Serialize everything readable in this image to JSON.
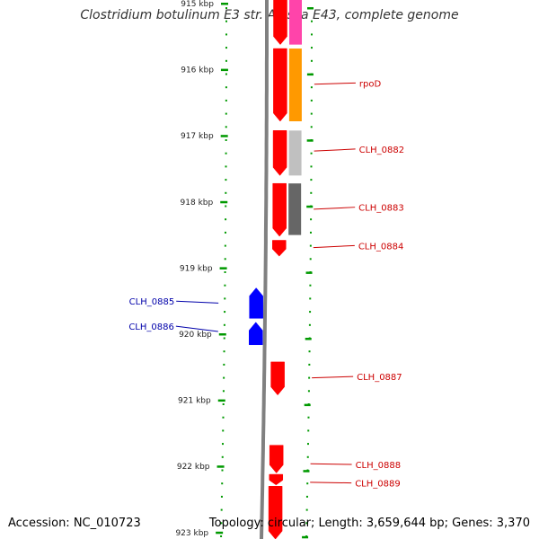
{
  "title": "Clostridium botulinum E3 str. Alaska E43, complete genome",
  "footer": {
    "accession": "Accession: NC_010723",
    "summary": "Topology: circular; Length: 3,659,644 bp; Genes: 3,370"
  },
  "colors": {
    "background": "#ffffff",
    "forward_gene": "#ff0000",
    "reverse_gene": "#0000ff",
    "forward_label": "#cc0000",
    "reverse_label": "#0000aa",
    "tick": "#009900",
    "backbone": "#808080"
  },
  "ticks": [
    {
      "label": "915 kbp",
      "kbp": 915
    },
    {
      "label": "916 kbp",
      "kbp": 916
    },
    {
      "label": "917 kbp",
      "kbp": 917
    },
    {
      "label": "918 kbp",
      "kbp": 918
    },
    {
      "label": "919 kbp",
      "kbp": 919
    },
    {
      "label": "920 kbp",
      "kbp": 920
    },
    {
      "label": "921 kbp",
      "kbp": 921
    },
    {
      "label": "922 kbp",
      "kbp": 922
    },
    {
      "label": "923 kbp",
      "kbp": 923
    }
  ],
  "features": [
    {
      "strand": "+",
      "start_kbp": 914.9,
      "end_kbp": 915.62,
      "color": "#ff0000"
    },
    {
      "strand": "+",
      "start_kbp": 915.68,
      "end_kbp": 916.78,
      "color": "#ff0000"
    },
    {
      "strand": "+",
      "start_kbp": 916.92,
      "end_kbp": 917.6,
      "color": "#ff0000"
    },
    {
      "strand": "+",
      "start_kbp": 917.72,
      "end_kbp": 918.52,
      "color": "#ff0000"
    },
    {
      "strand": "+",
      "start_kbp": 918.58,
      "end_kbp": 918.82,
      "color": "#ff0000"
    },
    {
      "strand": "-",
      "start_kbp": 919.3,
      "end_kbp": 919.76,
      "color": "#0000ff"
    },
    {
      "strand": "-",
      "start_kbp": 919.82,
      "end_kbp": 920.16,
      "color": "#0000ff"
    },
    {
      "strand": "+",
      "start_kbp": 920.42,
      "end_kbp": 920.92,
      "color": "#ff0000"
    },
    {
      "strand": "+",
      "start_kbp": 921.68,
      "end_kbp": 922.1,
      "color": "#ff0000"
    },
    {
      "strand": "+",
      "start_kbp": 922.12,
      "end_kbp": 922.28,
      "color": "#ff0000"
    },
    {
      "strand": "+",
      "start_kbp": 922.3,
      "end_kbp": 923.1,
      "color": "#ff0000"
    }
  ],
  "orthologs": [
    {
      "start_kbp": 914.9,
      "end_kbp": 915.62,
      "color": "#ff44aa"
    },
    {
      "start_kbp": 915.68,
      "end_kbp": 916.78,
      "color": "#ff9900"
    },
    {
      "start_kbp": 916.92,
      "end_kbp": 917.6,
      "color": "#c0c0c0"
    },
    {
      "start_kbp": 917.72,
      "end_kbp": 918.5,
      "color": "#666666"
    }
  ],
  "labels": [
    {
      "text": "rpoD",
      "strand": "+",
      "kbp": 916.22,
      "text_kbp": 916.2
    },
    {
      "text": "CLH_0882",
      "strand": "+",
      "kbp": 917.23,
      "text_kbp": 917.2
    },
    {
      "text": "CLH_0883",
      "strand": "+",
      "kbp": 918.11,
      "text_kbp": 918.08
    },
    {
      "text": "CLH_0884",
      "strand": "+",
      "kbp": 918.69,
      "text_kbp": 918.66
    },
    {
      "text": "CLH_0885",
      "strand": "-",
      "kbp": 919.53,
      "text_kbp": 919.5
    },
    {
      "text": "CLH_0886",
      "strand": "-",
      "kbp": 919.96,
      "text_kbp": 919.88
    },
    {
      "text": "CLH_0887",
      "strand": "+",
      "kbp": 920.66,
      "text_kbp": 920.64
    },
    {
      "text": "CLH_0888",
      "strand": "+",
      "kbp": 921.96,
      "text_kbp": 921.97
    },
    {
      "text": "CLH_0889",
      "strand": "+",
      "kbp": 922.24,
      "text_kbp": 922.25
    }
  ]
}
